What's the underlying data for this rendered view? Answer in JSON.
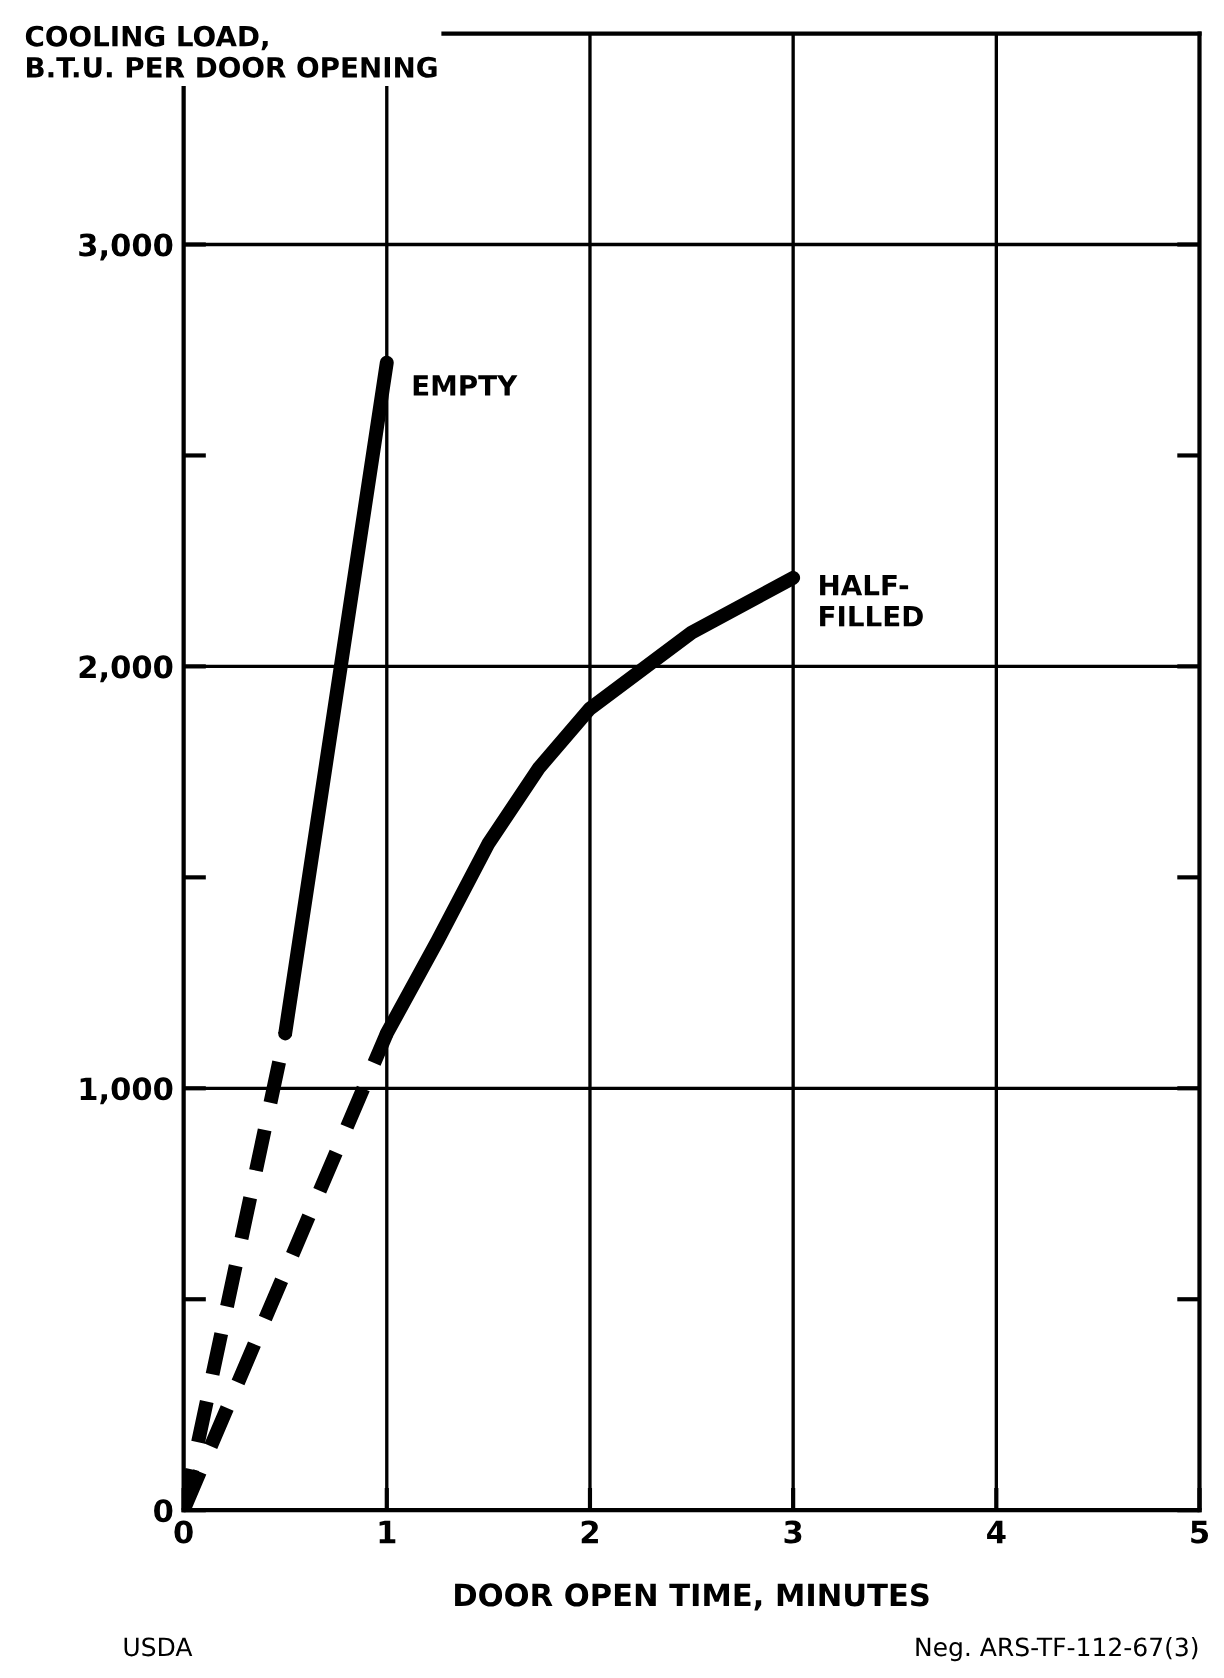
{
  "chart_data": {
    "type": "line",
    "ylabel": "COOLING LOAD,\nB.T.U. PER DOOR OPENING",
    "xlabel": "DOOR OPEN TIME, MINUTES",
    "series": [
      {
        "color": "#000000",
        "line_style": "dashed",
        "x": [
          0,
          0.5
        ],
        "values": [
          0,
          1130
        ]
      },
      {
        "name": "EMPTY",
        "color": "#000000",
        "line_style": "solid",
        "x": [
          0.5,
          1.0
        ],
        "values": [
          1130,
          2720
        ]
      },
      {
        "color": "#000000",
        "line_style": "dashed",
        "x": [
          0,
          1.0
        ],
        "values": [
          0,
          1130
        ]
      },
      {
        "name": "HALF-\nFILLED",
        "color": "#000000",
        "line_style": "solid",
        "x": [
          1.0,
          1.25,
          1.5,
          1.75,
          2.0,
          2.5,
          3.0
        ],
        "values": [
          1130,
          1350,
          1580,
          1760,
          1900,
          2080,
          2210
        ]
      }
    ],
    "xlim": [
      0,
      5
    ],
    "ylim": [
      0,
      3500
    ],
    "xticks": [
      0,
      1,
      2,
      3,
      4,
      5
    ],
    "yticks": [
      0,
      {
        "value": 500,
        "label": null
      },
      {
        "value": 1000,
        "label": "1,000"
      },
      {
        "value": 1500,
        "label": null
      },
      {
        "value": 2000,
        "label": "2,000"
      },
      {
        "value": 2500,
        "label": null
      },
      {
        "value": 3000,
        "label": "3,000"
      }
    ],
    "grid": true,
    "marker": "none",
    "annotations": [
      "USDA",
      "Neg. ARS-TF-112-67(3)"
    ]
  }
}
